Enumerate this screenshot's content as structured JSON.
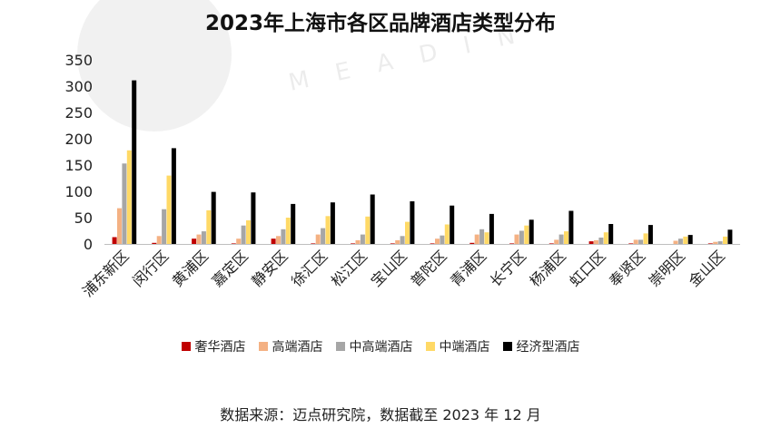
{
  "title": "2023年上海市各区品牌酒店类型分布",
  "source": "数据来源：迈点研究院，数据截至 2023 年 12 月",
  "watermark_text": "MEADIN",
  "colors": {
    "luxury": "#c00000",
    "upscale": "#f4b183",
    "upper_mid": "#a6a6a6",
    "midscale": "#ffd966",
    "economy": "#000000"
  },
  "chart_data": {
    "type": "bar",
    "title": "2023年上海市各区品牌酒店类型分布",
    "xlabel": "",
    "ylabel": "",
    "ylim": [
      0,
      350
    ],
    "yticks": [
      0,
      50,
      100,
      150,
      200,
      250,
      300,
      350
    ],
    "grid": false,
    "legend_position": "bottom",
    "categories": [
      "浦东新区",
      "闵行区",
      "黄浦区",
      "嘉定区",
      "静安区",
      "徐汇区",
      "松江区",
      "宝山区",
      "普陀区",
      "青浦区",
      "长宁区",
      "杨浦区",
      "虹口区",
      "奉贤区",
      "崇明区",
      "金山区"
    ],
    "series": [
      {
        "name": "奢华酒店",
        "color_key": "luxury",
        "values": [
          13,
          2,
          10,
          1,
          10,
          1,
          1,
          1,
          1,
          2,
          1,
          1,
          5,
          1,
          0,
          1
        ]
      },
      {
        "name": "高端酒店",
        "color_key": "upscale",
        "values": [
          68,
          15,
          18,
          10,
          15,
          18,
          7,
          7,
          10,
          18,
          18,
          8,
          7,
          8,
          6,
          4
        ]
      },
      {
        "name": "中高端酒店",
        "color_key": "upper_mid",
        "values": [
          153,
          66,
          24,
          35,
          28,
          30,
          18,
          15,
          16,
          28,
          25,
          18,
          12,
          8,
          10,
          5
        ]
      },
      {
        "name": "中端酒店",
        "color_key": "midscale",
        "values": [
          178,
          130,
          64,
          45,
          50,
          53,
          52,
          42,
          37,
          22,
          35,
          24,
          22,
          20,
          14,
          14
        ]
      },
      {
        "name": "经济型酒店",
        "color_key": "economy",
        "values": [
          311,
          182,
          99,
          98,
          76,
          79,
          94,
          81,
          73,
          57,
          46,
          63,
          38,
          36,
          17,
          27
        ]
      }
    ]
  }
}
